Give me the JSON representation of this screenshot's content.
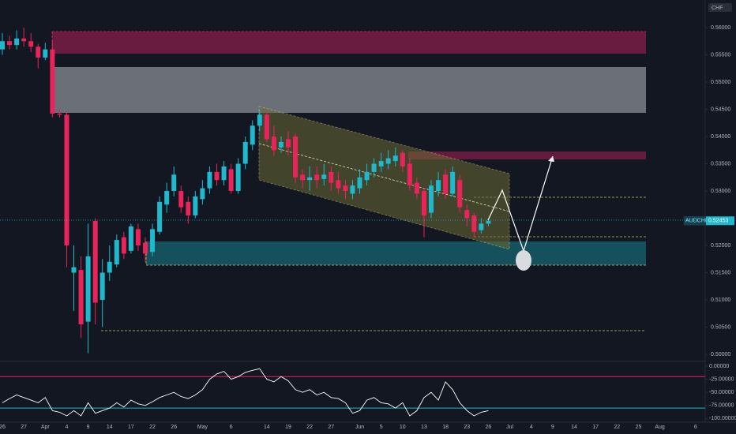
{
  "chart_data": {
    "type": "candlestick",
    "symbol": "AUDCHF",
    "currency": "CHF",
    "up_color": "#1fb8cd",
    "down_color": "#e8245b",
    "categories": [
      "26",
      null,
      null,
      "27",
      null,
      null,
      "Apr",
      null,
      null,
      "4",
      null,
      null,
      "9",
      null,
      null,
      "14",
      null,
      null,
      "17",
      null,
      null,
      "22",
      null,
      null,
      "26",
      null,
      null,
      null,
      "May",
      null,
      null,
      null,
      "6",
      null,
      null,
      null,
      null,
      "14",
      null,
      null,
      "19",
      null,
      null,
      "22",
      null,
      null,
      "27",
      null,
      null,
      null,
      "Jun",
      null,
      null,
      "5",
      null,
      null,
      "10",
      null,
      null,
      "13",
      null,
      null,
      "18",
      null,
      null,
      "23",
      null,
      null,
      "26",
      null,
      null,
      "Jul",
      null,
      null,
      "4",
      null,
      null,
      "9",
      null,
      null,
      "14",
      null,
      null,
      "17",
      null,
      null,
      "22",
      null,
      null,
      "25",
      null,
      null,
      "Aug",
      null,
      null,
      null,
      null,
      "6"
    ],
    "open": [
      0.556,
      0.5575,
      0.5568,
      0.558,
      0.5575,
      0.5565,
      0.5545,
      0.556,
      0.5442,
      0.544,
      0.515,
      0.5155,
      0.506,
      0.5245,
      0.51,
      0.515,
      0.5165,
      0.5215,
      0.519,
      0.523,
      0.5205,
      0.5188,
      0.5225,
      0.5275,
      0.53,
      0.53,
      0.528,
      0.5255,
      0.5285,
      0.5305,
      0.5335,
      0.532,
      0.534,
      0.53,
      0.535,
      0.5385,
      0.542,
      0.544,
      0.54,
      0.538,
      0.5395,
      0.54,
      0.533,
      0.532,
      0.533,
      0.5322,
      0.5335,
      0.532,
      0.531,
      0.5295,
      0.5305,
      0.532,
      0.5335,
      0.5345,
      0.535,
      0.5355,
      0.537,
      0.535,
      0.5315,
      0.53,
      0.526,
      0.53,
      0.533,
      0.5295,
      0.532,
      0.5265,
      0.5255,
      0.5228,
      0.524,
      null,
      null,
      null,
      null,
      null,
      null,
      null,
      null,
      null,
      null,
      null,
      null,
      null,
      null,
      null,
      null,
      null,
      null,
      null,
      null,
      null,
      null,
      null,
      null,
      null,
      null,
      null,
      null,
      null
    ],
    "high": [
      0.559,
      0.5585,
      0.5595,
      0.56,
      0.559,
      0.557,
      0.5572,
      0.5575,
      0.545,
      0.5445,
      0.52,
      0.518,
      0.524,
      0.525,
      0.5175,
      0.52,
      0.522,
      0.5225,
      0.524,
      0.524,
      0.5215,
      0.524,
      0.529,
      0.5315,
      0.5345,
      0.531,
      0.529,
      0.53,
      0.532,
      0.5345,
      0.535,
      0.5355,
      0.535,
      0.536,
      0.54,
      0.543,
      0.545,
      0.5445,
      0.542,
      0.54,
      0.541,
      0.5405,
      0.534,
      0.5345,
      0.5345,
      0.535,
      0.5345,
      0.5335,
      0.532,
      0.532,
      0.534,
      0.535,
      0.536,
      0.537,
      0.5375,
      0.538,
      0.5375,
      0.536,
      0.5325,
      0.5305,
      0.532,
      0.5335,
      0.534,
      0.5345,
      0.533,
      0.5275,
      0.526,
      0.525,
      0.525,
      null,
      null,
      null,
      null,
      null,
      null,
      null,
      null,
      null,
      null,
      null,
      null,
      null,
      null,
      null,
      null,
      null,
      null,
      null,
      null,
      null,
      null,
      null,
      null,
      null,
      null,
      null,
      null,
      null
    ],
    "low": [
      0.555,
      0.556,
      0.556,
      0.5565,
      0.5555,
      0.5525,
      0.554,
      0.5435,
      0.5435,
      0.516,
      0.508,
      0.503,
      0.5002,
      0.5055,
      0.505,
      0.5135,
      0.516,
      0.5175,
      0.5185,
      0.519,
      0.517,
      0.518,
      0.522,
      0.526,
      0.529,
      0.526,
      0.524,
      0.525,
      0.5275,
      0.5295,
      0.531,
      0.531,
      0.5295,
      0.5295,
      0.534,
      0.5375,
      0.541,
      0.539,
      0.5365,
      0.537,
      0.5365,
      0.5315,
      0.5305,
      0.53,
      0.5305,
      0.531,
      0.53,
      0.5295,
      0.5285,
      0.5285,
      0.5295,
      0.531,
      0.5325,
      0.5335,
      0.534,
      0.5345,
      0.5335,
      0.53,
      0.5285,
      0.5215,
      0.525,
      0.529,
      0.5285,
      0.529,
      0.526,
      0.5235,
      0.5215,
      0.5222,
      0.5235,
      null,
      null,
      null,
      null,
      null,
      null,
      null,
      null,
      null,
      null,
      null,
      null,
      null,
      null,
      null,
      null,
      null,
      null,
      null,
      null,
      null,
      null,
      null,
      null,
      null,
      null,
      null,
      null,
      null
    ],
    "close": [
      0.5575,
      0.5568,
      0.558,
      0.5575,
      0.5565,
      0.5545,
      0.556,
      0.5442,
      0.544,
      0.52,
      0.516,
      0.5055,
      0.518,
      0.5095,
      0.515,
      0.517,
      0.521,
      0.5185,
      0.5235,
      0.52,
      0.5185,
      0.523,
      0.528,
      0.53,
      0.533,
      0.527,
      0.5255,
      0.529,
      0.5305,
      0.5335,
      0.532,
      0.5345,
      0.53,
      0.535,
      0.539,
      0.542,
      0.544,
      0.5395,
      0.5375,
      0.539,
      0.538,
      0.5325,
      0.532,
      0.5325,
      0.532,
      0.533,
      0.5315,
      0.5305,
      0.53,
      0.531,
      0.5325,
      0.5335,
      0.535,
      0.5355,
      0.536,
      0.5365,
      0.5345,
      0.531,
      0.5295,
      0.5255,
      0.531,
      0.532,
      0.5295,
      0.5335,
      0.527,
      0.525,
      0.5225,
      0.524,
      0.52453,
      null,
      null,
      null,
      null,
      null,
      null,
      null,
      null,
      null,
      null,
      null,
      null,
      null,
      null,
      null,
      null,
      null,
      null,
      null,
      null,
      null,
      null,
      null,
      null,
      null,
      null,
      null,
      null,
      null
    ],
    "ylim": [
      0.4987,
      0.56507
    ],
    "yticks": [
      {
        "value": 0.5,
        "label": "0.50000"
      },
      {
        "value": 0.505,
        "label": "0.50500"
      },
      {
        "value": 0.51,
        "label": "0.51000"
      },
      {
        "value": 0.515,
        "label": "0.51500"
      },
      {
        "value": 0.52,
        "label": "0.52000"
      },
      {
        "value": 0.53,
        "label": "0.53000"
      },
      {
        "value": 0.535,
        "label": "0.53500"
      },
      {
        "value": 0.54,
        "label": "0.54000"
      },
      {
        "value": 0.545,
        "label": "0.54500"
      },
      {
        "value": 0.55,
        "label": "0.55000"
      },
      {
        "value": 0.555,
        "label": "0.55500"
      },
      {
        "value": 0.56,
        "label": "0.56000"
      }
    ],
    "grid": false,
    "oscillator": {
      "color": "#ffffff",
      "values": [
        -70,
        -62,
        -55,
        -60,
        -65,
        -70,
        -60,
        -85,
        -88,
        -95,
        -85,
        -95,
        -70,
        -90,
        -85,
        -80,
        -70,
        -78,
        -65,
        -72,
        -75,
        -68,
        -60,
        -55,
        -50,
        -58,
        -62,
        -55,
        -45,
        -25,
        -15,
        -10,
        -25,
        -20,
        -12,
        -8,
        -5,
        -25,
        -30,
        -20,
        -28,
        -45,
        -50,
        -45,
        -55,
        -50,
        -60,
        -62,
        -70,
        -90,
        -85,
        -65,
        -60,
        -70,
        -72,
        -80,
        -70,
        -95,
        -85,
        -60,
        -50,
        -65,
        -30,
        -45,
        -70,
        -85,
        -95,
        -88,
        -85,
        null,
        null,
        null,
        null,
        null,
        null,
        null,
        null,
        null,
        null,
        null,
        null,
        null,
        null,
        null,
        null,
        null,
        null,
        null,
        null,
        null,
        null,
        null,
        null,
        null,
        null,
        null,
        null,
        null
      ],
      "ylim": [
        -110,
        9
      ],
      "yticks": [
        {
          "value": 0,
          "label": "0.00000"
        },
        {
          "value": -25,
          "label": "-25.00000"
        },
        {
          "value": -50,
          "label": "-50.00000"
        },
        {
          "value": -75,
          "label": "-75.00000"
        },
        {
          "value": -100,
          "label": "-100.00000"
        }
      ],
      "levels": [
        {
          "value": -20,
          "color": "#e91e63"
        },
        {
          "value": -80,
          "color": "#1fb8cd"
        }
      ]
    }
  }
}
